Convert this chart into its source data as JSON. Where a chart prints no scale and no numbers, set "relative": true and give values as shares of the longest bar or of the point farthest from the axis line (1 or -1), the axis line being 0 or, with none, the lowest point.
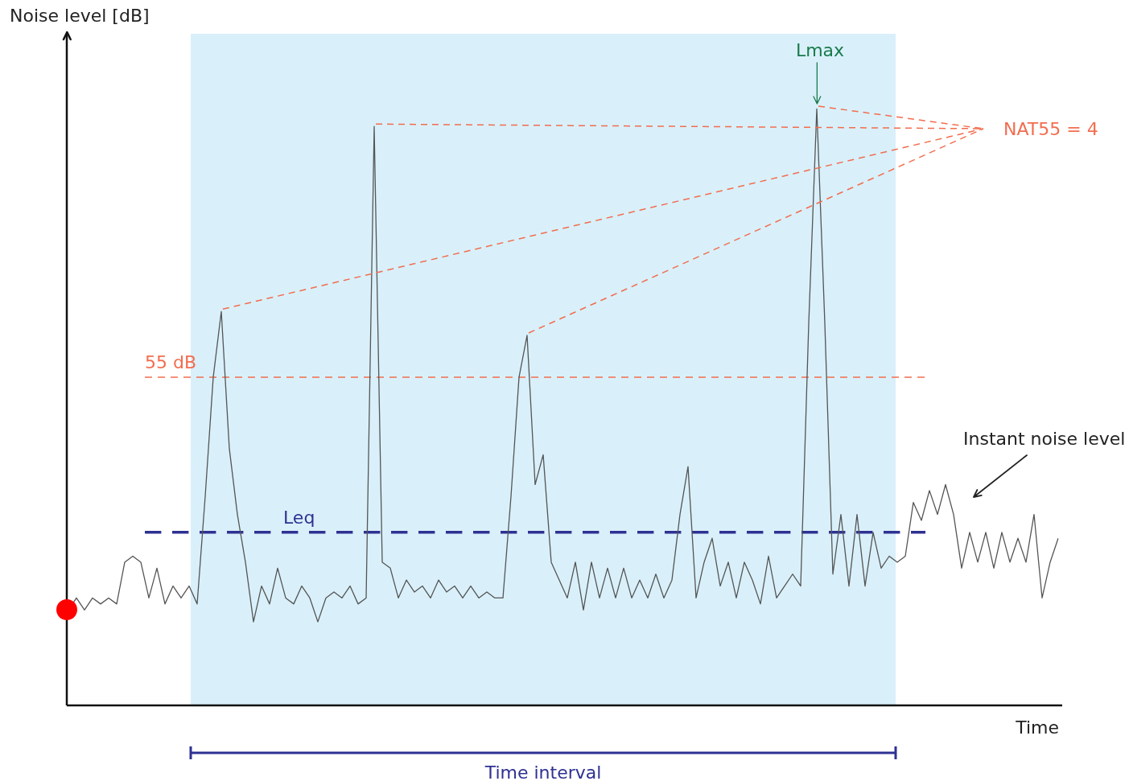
{
  "chart_data": {
    "type": "line",
    "relative": true,
    "xlabel": "Time",
    "ylabel": "Noise level [dB]",
    "legend": false,
    "categories": [
      null,
      null,
      null,
      null,
      null,
      null,
      null,
      null,
      null,
      null,
      null,
      null,
      null,
      null,
      null,
      null,
      null,
      null,
      null,
      null,
      null,
      null,
      null,
      null,
      null,
      null,
      null,
      null,
      null,
      null,
      null,
      null,
      null,
      null,
      null,
      null,
      null,
      null,
      null,
      null,
      null,
      null,
      null,
      null,
      null,
      null,
      null,
      null,
      null,
      null,
      null,
      null,
      null,
      null,
      null,
      null,
      null,
      null,
      null,
      null,
      null,
      null,
      null,
      null,
      null,
      null,
      null,
      null,
      null,
      null,
      null,
      null,
      null,
      null,
      null,
      null,
      null,
      null,
      null,
      null,
      null,
      null,
      null,
      null,
      null,
      null,
      null,
      null,
      null,
      null,
      null,
      null,
      null,
      null,
      null,
      null,
      null,
      null,
      null,
      null,
      null,
      null,
      null,
      null,
      null,
      null,
      null,
      null,
      null,
      null,
      null,
      null,
      null,
      null,
      null,
      null,
      null,
      null,
      null,
      null,
      null,
      null,
      null,
      null
    ],
    "series": [
      {
        "color": "#555555",
        "values": [
          0.16,
          0.18,
          0.16,
          0.18,
          0.17,
          0.18,
          0.17,
          0.24,
          0.25,
          0.24,
          0.18,
          0.23,
          0.17,
          0.2,
          0.18,
          0.2,
          0.17,
          0.35,
          0.55,
          0.66,
          0.43,
          0.32,
          0.24,
          0.14,
          0.2,
          0.17,
          0.23,
          0.18,
          0.17,
          0.2,
          0.18,
          0.14,
          0.18,
          0.19,
          0.18,
          0.2,
          0.17,
          0.18,
          0.97,
          0.24,
          0.23,
          0.18,
          0.21,
          0.19,
          0.2,
          0.18,
          0.21,
          0.19,
          0.2,
          0.18,
          0.2,
          0.18,
          0.19,
          0.18,
          0.18,
          0.35,
          0.55,
          0.62,
          0.37,
          0.42,
          0.24,
          0.21,
          0.18,
          0.24,
          0.16,
          0.24,
          0.18,
          0.23,
          0.18,
          0.23,
          0.18,
          0.21,
          0.18,
          0.22,
          0.18,
          0.21,
          0.32,
          0.4,
          0.18,
          0.24,
          0.28,
          0.2,
          0.24,
          0.18,
          0.24,
          0.21,
          0.17,
          0.25,
          0.18,
          0.2,
          0.22,
          0.2,
          0.64,
          1.0,
          0.64,
          0.22,
          0.32,
          0.2,
          0.32,
          0.2,
          0.29,
          0.23,
          0.25,
          0.24,
          0.25,
          0.34,
          0.31,
          0.36,
          0.32,
          0.37,
          0.32,
          0.23,
          0.29,
          0.24,
          0.29,
          0.23,
          0.29,
          0.24,
          0.28,
          0.24,
          0.32,
          0.18,
          0.24,
          0.28
        ]
      }
    ],
    "ref_lines": [
      {
        "axis": "y",
        "value": 0.55,
        "label": "55 dB",
        "color": "#f26d4f",
        "line_style": "dashed"
      },
      {
        "axis": "y",
        "value": 0.29,
        "label": "Leq",
        "color": "#2e3192",
        "line_style": "dashed"
      }
    ],
    "annotations": [
      "Lmax",
      "NAT55 = 4",
      "Instant noise level",
      "Time interval"
    ]
  }
}
